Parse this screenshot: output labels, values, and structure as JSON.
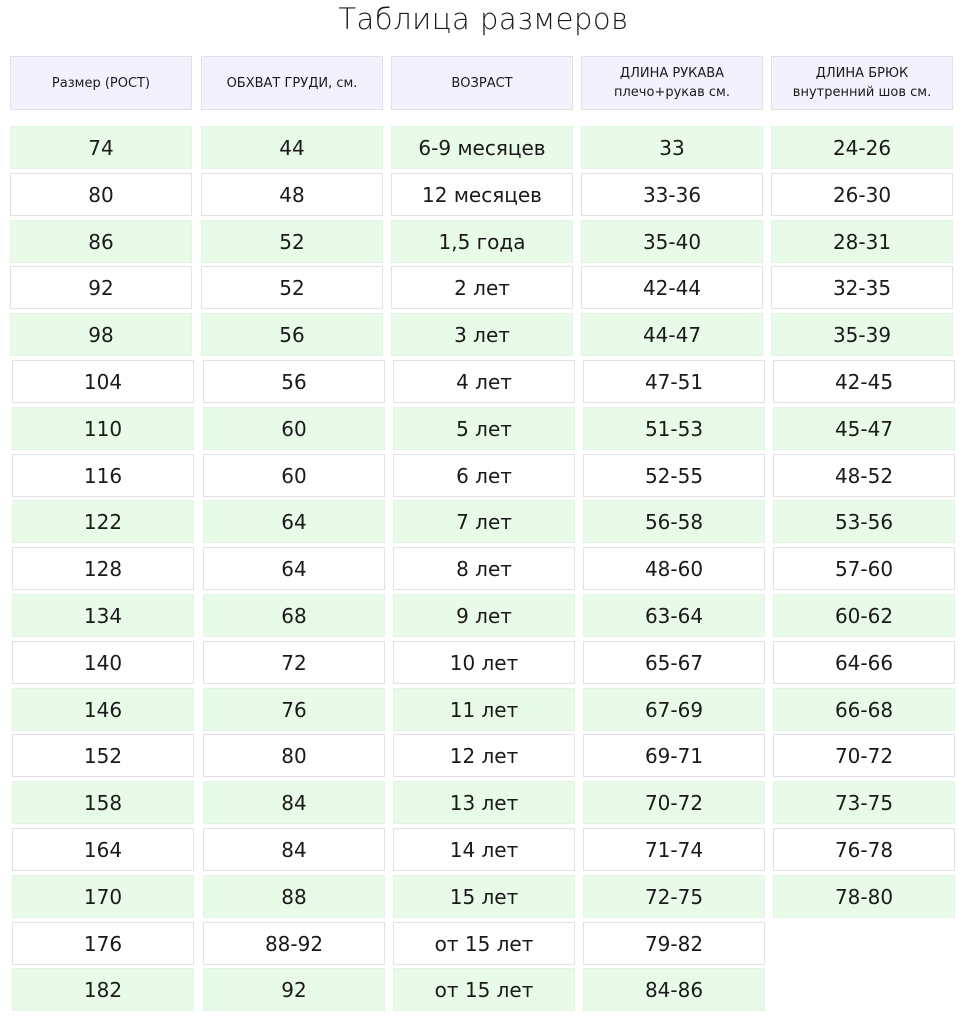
{
  "title": "Таблица размеров",
  "colors": {
    "header_bg": "#f3f1fd",
    "row_green": "#e7fbe8",
    "row_white": "#ffffff"
  },
  "headers": [
    [
      "Размер (РОСТ)"
    ],
    [
      "ОБХВАТ ГРУДИ, см."
    ],
    [
      "ВОЗРАСТ"
    ],
    [
      "ДЛИНА РУКАВА",
      "плечо+рукав см."
    ],
    [
      "ДЛИНА БРЮК",
      "внутренний шов см."
    ]
  ],
  "columns": [
    [
      "74",
      "80",
      "86",
      "92",
      "98",
      "104",
      "110",
      "116",
      "122",
      "128",
      "134",
      "140",
      "146",
      "152",
      "158",
      "164",
      "170",
      "176",
      "182"
    ],
    [
      "44",
      "48",
      "52",
      "52",
      "56",
      "56",
      "60",
      "60",
      "64",
      "64",
      "68",
      "72",
      "76",
      "80",
      "84",
      "84",
      "88",
      "88-92",
      "92"
    ],
    [
      "6-9 месяцев",
      "12 месяцев",
      "1,5 года",
      "2 лет",
      "3 лет",
      "4 лет",
      "5 лет",
      "6 лет",
      "7 лет",
      "8 лет",
      "9 лет",
      "10 лет",
      "11 лет",
      "12 лет",
      "13 лет",
      "14 лет",
      "15 лет",
      "от 15 лет",
      "от 15 лет"
    ],
    [
      "33",
      "33-36",
      "35-40",
      "42-44",
      "44-47",
      "47-51",
      "51-53",
      "52-55",
      "56-58",
      "48-60",
      "63-64",
      "65-67",
      "67-69",
      "69-71",
      "70-72",
      "71-74",
      "72-75",
      "79-82",
      "84-86"
    ],
    [
      "24-26",
      "26-30",
      "28-31",
      "32-35",
      "35-39",
      "42-45",
      "45-47",
      "48-52",
      "53-56",
      "57-60",
      "60-62",
      "64-66",
      "66-68",
      "70-72",
      "73-75",
      "76-78",
      "78-80"
    ]
  ]
}
